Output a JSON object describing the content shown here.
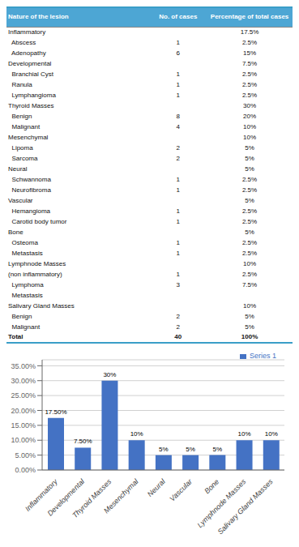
{
  "table": {
    "header": [
      "Nature of the lesion",
      "No. of cases",
      "Percentage of total cases"
    ],
    "rows": [
      [
        "Inflammatory",
        null,
        "17.5%"
      ],
      [
        "  Abscess",
        "1",
        "2.5%"
      ],
      [
        "  Adenopathy",
        "6",
        "15%"
      ],
      [
        "Developmental",
        null,
        "7.5%"
      ],
      [
        "  Branchial Cyst",
        "1",
        "2.5%"
      ],
      [
        "  Ranula",
        "1",
        "2.5%"
      ],
      [
        "  Lymphangioma",
        "1",
        "2.5%"
      ],
      [
        "Thyroid Masses",
        null,
        "30%"
      ],
      [
        "  Benign",
        "8",
        "20%"
      ],
      [
        "  Malignant",
        "4",
        "10%"
      ],
      [
        "Mesenchymal",
        null,
        "10%"
      ],
      [
        "  Lipoma",
        "2",
        "5%"
      ],
      [
        "  Sarcoma",
        "2",
        "5%"
      ],
      [
        "Neural",
        null,
        "5%"
      ],
      [
        "  Schwannoma",
        "1",
        "2.5%"
      ],
      [
        "  Neurofibroma",
        "1",
        "2.5%"
      ],
      [
        "Vascular",
        null,
        "5%"
      ],
      [
        "  Hemangioma",
        "1",
        "2.5%"
      ],
      [
        "  Carotid body tumor",
        "1",
        "2.5%"
      ],
      [
        "Bone",
        null,
        "5%"
      ],
      [
        "  Osteoma",
        "1",
        "2.5%"
      ],
      [
        "  Metastasis",
        "1",
        "2.5%"
      ],
      [
        "Lymphnode Masses",
        null,
        "10%"
      ],
      [
        "(non inflammatory)",
        "1",
        "2.5%"
      ],
      [
        "  Lymphoma",
        "3",
        "7.5%"
      ],
      [
        "  Metastasis",
        null,
        null
      ],
      [
        "Salivary Gland Masses",
        null,
        "10%"
      ],
      [
        "  Benign",
        "2",
        "5%"
      ],
      [
        "  Malignant",
        "2",
        "5%"
      ],
      [
        "Total",
        "40",
        "100%"
      ]
    ]
  },
  "chart_data": {
    "type": "bar",
    "categories": [
      "Inflammatory",
      "Developmental",
      "Thyroid Masses",
      "Mesenchymal",
      "Neural",
      "Vascular",
      "Bone",
      "Lymphnode Masses",
      "Salivary Gland Masses"
    ],
    "series": [
      {
        "name": "Series 1",
        "color": "#4472c4",
        "values": [
          17.5,
          7.5,
          30,
          10,
          5,
          5,
          5,
          10,
          10
        ],
        "value_labels": [
          "17.50%",
          "7.50%",
          "30%",
          "10%",
          "5%",
          "5%",
          "5%",
          "10%",
          "10%"
        ]
      }
    ],
    "ylim": [
      0,
      37
    ],
    "yticks": [
      {
        "value": 0,
        "label": "0.00%"
      },
      {
        "value": 5,
        "label": "5.00%"
      },
      {
        "value": 10,
        "label": "10.00%"
      },
      {
        "value": 15,
        "label": "15.00%"
      },
      {
        "value": 20,
        "label": "20.00%"
      },
      {
        "value": 25,
        "label": "25.00%"
      },
      {
        "value": 30,
        "label": "30.00%"
      },
      {
        "value": 35,
        "label": "35.00%"
      }
    ],
    "grid": true,
    "legend": "upper right",
    "data_labels": true
  }
}
